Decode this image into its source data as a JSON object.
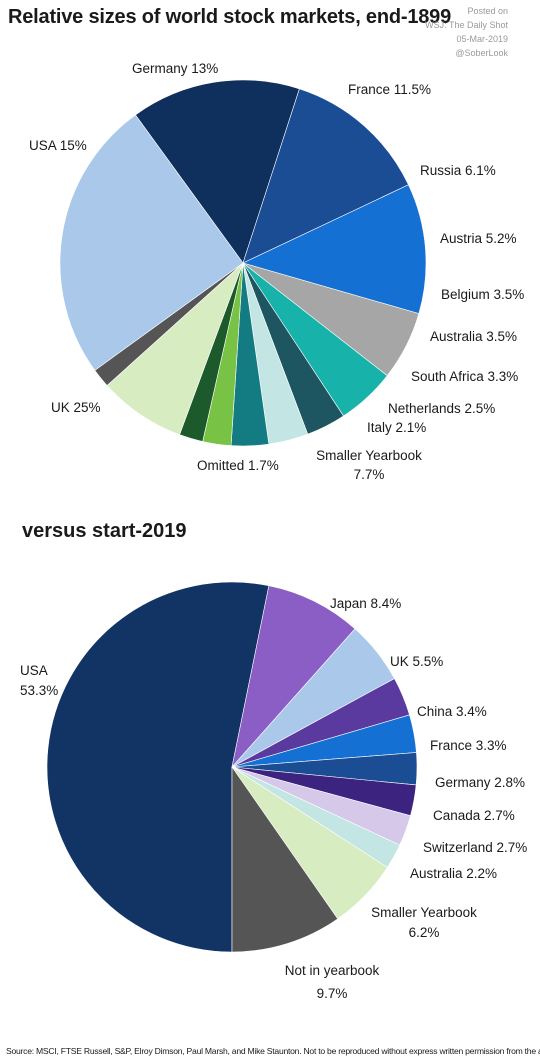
{
  "title": "Relative sizes of world stock markets, end-1899",
  "subtitle": "versus start-2019",
  "watermark": [
    "Posted on",
    "WSJ: The Daily Shot",
    "05-Mar-2019",
    "@SoberLook"
  ],
  "source": "Source: MSCI, FTSE Russell, S&P, Elroy Dimson, Paul Marsh, and Mike Staunton. Not to be reproduced without express written permission from the authors.",
  "chart_data": [
    {
      "type": "pie",
      "title": "Relative sizes of world stock markets, end-1899",
      "slices": [
        {
          "label": "USA 15%",
          "value": 15,
          "color": "#0f2f5c"
        },
        {
          "label": "Germany 13%",
          "value": 13,
          "color": "#1a4d94"
        },
        {
          "label": "France 11.5%",
          "value": 11.5,
          "color": "#1570d4"
        },
        {
          "label": "Russia 6.1%",
          "value": 6.1,
          "color": "#a6a6a6"
        },
        {
          "label": "Austria 5.2%",
          "value": 5.2,
          "color": "#17b3ab"
        },
        {
          "label": "Belgium 3.5%",
          "value": 3.5,
          "color": "#1d5560"
        },
        {
          "label": "Australia 3.5%",
          "value": 3.5,
          "color": "#c3e6e4"
        },
        {
          "label": "South Africa 3.3%",
          "value": 3.3,
          "color": "#137c82"
        },
        {
          "label": "Netherlands 2.5%",
          "value": 2.5,
          "color": "#78c245"
        },
        {
          "label": "Italy 2.1%",
          "value": 2.1,
          "color": "#1d5a2b"
        },
        {
          "label": "Smaller Yearbook 7.7%",
          "value": 7.7,
          "color": "#d8ecc1"
        },
        {
          "label": "Omitted 1.7%",
          "value": 1.7,
          "color": "#555555"
        },
        {
          "label": "UK 25%",
          "value": 25,
          "color": "#aac8ea"
        }
      ]
    },
    {
      "type": "pie",
      "title": "versus start-2019",
      "slices": [
        {
          "label": "USA 53.3%",
          "value": 53.3,
          "color": "#123465"
        },
        {
          "label": "Japan 8.4%",
          "value": 8.4,
          "color": "#8a5ec4"
        },
        {
          "label": "UK 5.5%",
          "value": 5.5,
          "color": "#aac8ea"
        },
        {
          "label": "China 3.4%",
          "value": 3.4,
          "color": "#5a3a9e"
        },
        {
          "label": "France 3.3%",
          "value": 3.3,
          "color": "#1570d4"
        },
        {
          "label": "Germany 2.8%",
          "value": 2.8,
          "color": "#1a4d94"
        },
        {
          "label": "Canada 2.7%",
          "value": 2.7,
          "color": "#3d2380"
        },
        {
          "label": "Switzerland 2.7%",
          "value": 2.7,
          "color": "#d6c8e8"
        },
        {
          "label": "Australia 2.2%",
          "value": 2.2,
          "color": "#c3e6e4"
        },
        {
          "label": "Smaller Yearbook 6.2%",
          "value": 6.2,
          "color": "#d8ecc1"
        },
        {
          "label": "Not in yearbook 9.7%",
          "value": 9.7,
          "color": "#555555"
        }
      ]
    }
  ]
}
